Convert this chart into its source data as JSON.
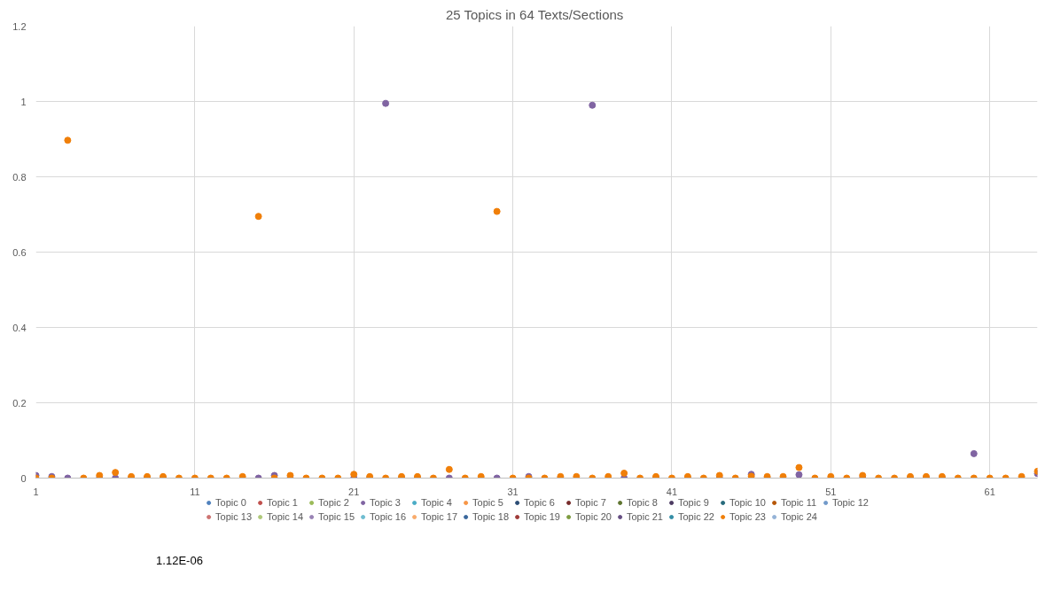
{
  "chart_data": {
    "type": "scatter",
    "title": "25 Topics in  64 Texts/Sections",
    "x": [
      1,
      2,
      3,
      4,
      5,
      6,
      7,
      8,
      9,
      10,
      11,
      12,
      13,
      14,
      15,
      16,
      17,
      18,
      19,
      20,
      21,
      22,
      23,
      24,
      25,
      26,
      27,
      28,
      29,
      30,
      31,
      32,
      33,
      34,
      35,
      36,
      37,
      38,
      39,
      40,
      41,
      42,
      43,
      44,
      45,
      46,
      47,
      48,
      49,
      50,
      51,
      52,
      53,
      54,
      55,
      56,
      57,
      58,
      59,
      60,
      61,
      62,
      63,
      64
    ],
    "xlim": [
      1,
      64
    ],
    "xticks": [
      1,
      11,
      21,
      31,
      41,
      51,
      61
    ],
    "ylim": [
      0,
      1.2
    ],
    "yticks": [
      0,
      0.2,
      0.4,
      0.6,
      0.8,
      1,
      1.2
    ],
    "grid": true,
    "legend": "bottom",
    "marker": "circle",
    "annotations": [
      "1.12E-06"
    ],
    "series": [
      {
        "name": "Topic 0",
        "color": "#4f81bd",
        "values": [
          null,
          null,
          null,
          null,
          null,
          null,
          null,
          null,
          null,
          null,
          null,
          null,
          null,
          null,
          null,
          null,
          null,
          null,
          null,
          null,
          null,
          null,
          null,
          null,
          null,
          null,
          null,
          null,
          null,
          null,
          null,
          null,
          null,
          null,
          null,
          null,
          null,
          null,
          null,
          null,
          null,
          null,
          null,
          null,
          null,
          null,
          null,
          null,
          null,
          null,
          null,
          null,
          null,
          null,
          null,
          null,
          null,
          null,
          null,
          null,
          null,
          null,
          null,
          null
        ]
      },
      {
        "name": "Topic 1",
        "color": "#c0504d",
        "values": [
          null,
          null,
          null,
          null,
          null,
          null,
          null,
          null,
          null,
          null,
          null,
          null,
          null,
          null,
          null,
          null,
          null,
          null,
          null,
          null,
          null,
          null,
          null,
          null,
          null,
          null,
          null,
          null,
          null,
          null,
          null,
          null,
          null,
          null,
          null,
          null,
          null,
          null,
          null,
          null,
          null,
          null,
          null,
          null,
          null,
          null,
          null,
          null,
          null,
          null,
          null,
          null,
          null,
          null,
          null,
          null,
          null,
          null,
          null,
          null,
          null,
          null,
          null,
          null
        ]
      },
      {
        "name": "Topic 2",
        "color": "#9bbb59",
        "values": [
          null,
          null,
          null,
          null,
          null,
          null,
          null,
          null,
          null,
          null,
          null,
          null,
          null,
          null,
          null,
          null,
          null,
          null,
          null,
          null,
          null,
          null,
          null,
          null,
          null,
          null,
          null,
          null,
          null,
          null,
          null,
          null,
          null,
          null,
          null,
          null,
          null,
          null,
          null,
          null,
          null,
          null,
          null,
          null,
          null,
          null,
          null,
          null,
          null,
          null,
          null,
          null,
          null,
          null,
          null,
          null,
          null,
          null,
          null,
          null,
          null,
          null,
          null,
          null
        ]
      },
      {
        "name": "Topic 3",
        "color": "#8064a2",
        "values": [
          0.007,
          0.004,
          0,
          null,
          0,
          0,
          0,
          0,
          0,
          null,
          null,
          null,
          null,
          null,
          0,
          0.007,
          0,
          null,
          null,
          null,
          0,
          0,
          0.995,
          0,
          0,
          null,
          0,
          null,
          null,
          0,
          null,
          0.004,
          null,
          0,
          null,
          0.99,
          null,
          0,
          null,
          0,
          null,
          0,
          null,
          0,
          null,
          0.01,
          0,
          null,
          0.009,
          null,
          null,
          null,
          0,
          null,
          null,
          0,
          0,
          0,
          null,
          0.065,
          null,
          null,
          null,
          0.012
        ]
      },
      {
        "name": "Topic 4",
        "color": "#4bacc6",
        "values": [
          null,
          null,
          null,
          null,
          null,
          null,
          null,
          null,
          null,
          null,
          null,
          null,
          null,
          null,
          null,
          null,
          null,
          null,
          null,
          null,
          null,
          null,
          null,
          null,
          null,
          null,
          null,
          null,
          null,
          null,
          null,
          null,
          null,
          null,
          null,
          null,
          null,
          null,
          null,
          null,
          null,
          null,
          null,
          null,
          null,
          null,
          null,
          null,
          null,
          null,
          null,
          null,
          null,
          null,
          null,
          null,
          null,
          null,
          null,
          null,
          null,
          null,
          null,
          null
        ]
      },
      {
        "name": "Topic 5",
        "color": "#f79646",
        "values": [
          null,
          null,
          null,
          null,
          null,
          null,
          null,
          null,
          null,
          null,
          null,
          null,
          null,
          null,
          null,
          null,
          null,
          null,
          null,
          null,
          null,
          null,
          null,
          null,
          null,
          null,
          null,
          null,
          null,
          null,
          null,
          null,
          null,
          null,
          null,
          null,
          null,
          null,
          null,
          null,
          null,
          null,
          null,
          null,
          null,
          null,
          null,
          null,
          null,
          null,
          null,
          null,
          null,
          null,
          null,
          null,
          null,
          null,
          null,
          null,
          null,
          null,
          null,
          null
        ]
      },
      {
        "name": "Topic 6",
        "color": "#2c4d75",
        "values": [
          null,
          null,
          null,
          null,
          null,
          null,
          null,
          null,
          null,
          null,
          null,
          null,
          null,
          null,
          null,
          null,
          null,
          null,
          null,
          null,
          null,
          null,
          null,
          null,
          null,
          null,
          null,
          null,
          null,
          null,
          null,
          null,
          null,
          null,
          null,
          null,
          null,
          null,
          null,
          null,
          null,
          null,
          null,
          null,
          null,
          null,
          null,
          null,
          null,
          null,
          null,
          null,
          null,
          null,
          null,
          null,
          null,
          null,
          null,
          null,
          null,
          null,
          null,
          null
        ]
      },
      {
        "name": "Topic 7",
        "color": "#772c2a",
        "values": [
          null,
          null,
          null,
          null,
          null,
          null,
          null,
          null,
          null,
          null,
          null,
          null,
          null,
          null,
          null,
          null,
          null,
          null,
          null,
          null,
          null,
          null,
          null,
          null,
          null,
          null,
          null,
          null,
          null,
          null,
          null,
          null,
          null,
          null,
          null,
          null,
          null,
          null,
          null,
          null,
          null,
          null,
          null,
          null,
          null,
          null,
          null,
          null,
          null,
          null,
          null,
          null,
          null,
          null,
          null,
          null,
          null,
          null,
          null,
          null,
          null,
          null,
          null,
          null
        ]
      },
      {
        "name": "Topic 8",
        "color": "#5f7530",
        "values": [
          null,
          null,
          null,
          null,
          null,
          null,
          null,
          null,
          null,
          null,
          null,
          null,
          null,
          null,
          null,
          null,
          null,
          null,
          null,
          null,
          null,
          null,
          null,
          null,
          null,
          null,
          null,
          null,
          null,
          null,
          null,
          null,
          null,
          null,
          null,
          null,
          null,
          null,
          null,
          null,
          null,
          null,
          null,
          null,
          null,
          null,
          null,
          null,
          null,
          null,
          null,
          null,
          null,
          null,
          null,
          null,
          null,
          null,
          null,
          null,
          null,
          null,
          null,
          null
        ]
      },
      {
        "name": "Topic 9",
        "color": "#4d3b62",
        "values": [
          null,
          null,
          null,
          null,
          null,
          null,
          null,
          null,
          null,
          null,
          null,
          null,
          null,
          null,
          null,
          null,
          null,
          null,
          null,
          null,
          null,
          null,
          null,
          null,
          null,
          null,
          null,
          null,
          null,
          null,
          null,
          null,
          null,
          null,
          null,
          null,
          null,
          null,
          null,
          null,
          null,
          null,
          null,
          null,
          null,
          null,
          null,
          null,
          null,
          null,
          null,
          null,
          null,
          null,
          null,
          null,
          null,
          null,
          null,
          null,
          null,
          null,
          null,
          null
        ]
      },
      {
        "name": "Topic 10",
        "color": "#276a7c",
        "values": [
          null,
          null,
          null,
          null,
          null,
          null,
          null,
          null,
          null,
          null,
          null,
          null,
          null,
          null,
          null,
          null,
          null,
          null,
          null,
          null,
          null,
          null,
          null,
          null,
          null,
          null,
          null,
          null,
          null,
          null,
          null,
          null,
          null,
          null,
          null,
          null,
          null,
          null,
          null,
          null,
          null,
          null,
          null,
          null,
          null,
          null,
          null,
          null,
          null,
          null,
          null,
          null,
          null,
          null,
          null,
          null,
          null,
          null,
          null,
          null,
          null,
          null,
          null,
          null
        ]
      },
      {
        "name": "Topic 11",
        "color": "#b65708",
        "values": [
          null,
          null,
          null,
          null,
          null,
          null,
          null,
          null,
          null,
          null,
          null,
          null,
          null,
          null,
          null,
          null,
          null,
          null,
          null,
          null,
          null,
          null,
          null,
          null,
          null,
          null,
          null,
          null,
          null,
          null,
          null,
          null,
          null,
          null,
          null,
          null,
          null,
          null,
          null,
          null,
          null,
          null,
          null,
          null,
          null,
          null,
          null,
          null,
          null,
          null,
          null,
          null,
          null,
          null,
          null,
          null,
          null,
          null,
          null,
          null,
          null,
          null,
          null,
          null
        ]
      },
      {
        "name": "Topic 12",
        "color": "#729aca",
        "values": [
          null,
          null,
          null,
          null,
          null,
          null,
          null,
          null,
          null,
          null,
          null,
          null,
          null,
          null,
          null,
          null,
          null,
          null,
          null,
          null,
          null,
          null,
          null,
          null,
          null,
          null,
          null,
          null,
          null,
          null,
          null,
          null,
          null,
          null,
          null,
          null,
          null,
          null,
          null,
          null,
          null,
          null,
          null,
          null,
          null,
          null,
          null,
          null,
          null,
          null,
          null,
          null,
          null,
          null,
          null,
          null,
          null,
          null,
          null,
          null,
          null,
          null,
          null,
          null
        ]
      },
      {
        "name": "Topic 13",
        "color": "#cd7371",
        "values": [
          null,
          null,
          null,
          null,
          null,
          null,
          null,
          null,
          null,
          null,
          null,
          null,
          null,
          null,
          null,
          null,
          null,
          null,
          null,
          null,
          null,
          null,
          null,
          null,
          null,
          null,
          null,
          null,
          null,
          null,
          null,
          null,
          null,
          null,
          null,
          null,
          null,
          null,
          null,
          null,
          null,
          null,
          null,
          null,
          null,
          null,
          null,
          null,
          null,
          null,
          null,
          null,
          null,
          null,
          null,
          null,
          null,
          null,
          null,
          null,
          null,
          null,
          null,
          null
        ]
      },
      {
        "name": "Topic 14",
        "color": "#afc97a",
        "values": [
          null,
          null,
          null,
          null,
          null,
          null,
          null,
          null,
          null,
          null,
          null,
          null,
          null,
          null,
          null,
          null,
          null,
          null,
          null,
          null,
          null,
          null,
          null,
          null,
          null,
          null,
          null,
          null,
          null,
          null,
          null,
          null,
          null,
          null,
          null,
          null,
          null,
          null,
          null,
          null,
          null,
          null,
          null,
          null,
          null,
          null,
          null,
          null,
          null,
          null,
          null,
          null,
          null,
          null,
          null,
          null,
          null,
          null,
          null,
          null,
          null,
          null,
          null,
          null
        ]
      },
      {
        "name": "Topic 15",
        "color": "#9983b5",
        "values": [
          null,
          null,
          null,
          null,
          null,
          null,
          null,
          null,
          null,
          null,
          null,
          null,
          null,
          null,
          null,
          null,
          null,
          null,
          null,
          null,
          null,
          null,
          null,
          null,
          null,
          null,
          null,
          null,
          null,
          null,
          null,
          null,
          null,
          null,
          null,
          null,
          null,
          null,
          null,
          null,
          null,
          null,
          null,
          null,
          null,
          null,
          null,
          null,
          null,
          null,
          null,
          null,
          null,
          null,
          null,
          null,
          null,
          null,
          null,
          null,
          null,
          null,
          null,
          null
        ]
      },
      {
        "name": "Topic 16",
        "color": "#6fbdd1",
        "values": [
          null,
          null,
          null,
          null,
          null,
          null,
          null,
          null,
          null,
          null,
          null,
          null,
          null,
          null,
          null,
          null,
          null,
          null,
          null,
          null,
          null,
          null,
          null,
          null,
          null,
          null,
          null,
          null,
          null,
          null,
          null,
          null,
          null,
          null,
          null,
          null,
          null,
          null,
          null,
          null,
          null,
          null,
          null,
          null,
          null,
          null,
          null,
          null,
          null,
          null,
          null,
          null,
          null,
          null,
          null,
          null,
          null,
          null,
          null,
          null,
          null,
          null,
          null,
          null
        ]
      },
      {
        "name": "Topic 17",
        "color": "#f9ab6b",
        "values": [
          null,
          null,
          null,
          null,
          null,
          null,
          null,
          null,
          null,
          null,
          null,
          null,
          null,
          null,
          null,
          null,
          null,
          null,
          null,
          null,
          null,
          null,
          null,
          null,
          null,
          null,
          null,
          null,
          null,
          null,
          null,
          null,
          null,
          null,
          null,
          null,
          null,
          null,
          null,
          null,
          null,
          null,
          null,
          null,
          null,
          null,
          null,
          null,
          null,
          null,
          null,
          null,
          null,
          null,
          null,
          null,
          null,
          null,
          null,
          null,
          null,
          null,
          null,
          null
        ]
      },
      {
        "name": "Topic 18",
        "color": "#3a679c",
        "values": [
          null,
          null,
          null,
          null,
          null,
          null,
          null,
          null,
          null,
          null,
          null,
          null,
          null,
          null,
          null,
          null,
          null,
          null,
          null,
          null,
          null,
          null,
          null,
          null,
          null,
          null,
          null,
          null,
          null,
          null,
          null,
          null,
          null,
          null,
          null,
          null,
          null,
          null,
          null,
          null,
          null,
          null,
          null,
          null,
          null,
          null,
          null,
          null,
          null,
          null,
          null,
          null,
          null,
          null,
          null,
          null,
          null,
          null,
          null,
          null,
          null,
          null,
          null,
          null
        ]
      },
      {
        "name": "Topic 19",
        "color": "#9f3b38",
        "values": [
          null,
          null,
          null,
          null,
          null,
          null,
          null,
          null,
          null,
          null,
          null,
          null,
          null,
          null,
          null,
          null,
          null,
          null,
          null,
          null,
          null,
          null,
          null,
          null,
          null,
          null,
          null,
          null,
          null,
          null,
          null,
          null,
          null,
          null,
          null,
          null,
          null,
          null,
          null,
          null,
          null,
          null,
          null,
          null,
          null,
          null,
          null,
          null,
          null,
          null,
          null,
          null,
          null,
          null,
          null,
          null,
          null,
          null,
          null,
          null,
          null,
          null,
          null,
          null
        ]
      },
      {
        "name": "Topic 20",
        "color": "#7e9c40",
        "values": [
          null,
          null,
          null,
          null,
          null,
          null,
          null,
          null,
          null,
          null,
          null,
          null,
          null,
          null,
          null,
          null,
          null,
          null,
          null,
          null,
          null,
          null,
          null,
          null,
          null,
          null,
          null,
          null,
          null,
          null,
          null,
          null,
          null,
          null,
          null,
          null,
          null,
          null,
          null,
          null,
          null,
          null,
          null,
          null,
          null,
          null,
          null,
          null,
          null,
          null,
          null,
          null,
          null,
          null,
          null,
          null,
          null,
          null,
          null,
          null,
          null,
          null,
          null,
          null
        ]
      },
      {
        "name": "Topic 21",
        "color": "#664f83",
        "values": [
          null,
          null,
          null,
          null,
          null,
          null,
          null,
          null,
          null,
          null,
          null,
          null,
          null,
          null,
          null,
          null,
          null,
          null,
          null,
          null,
          null,
          null,
          null,
          null,
          null,
          null,
          null,
          null,
          null,
          null,
          null,
          null,
          null,
          null,
          null,
          null,
          null,
          null,
          null,
          null,
          null,
          null,
          null,
          null,
          null,
          null,
          null,
          null,
          null,
          null,
          null,
          null,
          null,
          null,
          null,
          null,
          null,
          null,
          null,
          null,
          null,
          null,
          null,
          null
        ]
      },
      {
        "name": "Topic 22",
        "color": "#358ea6",
        "values": [
          null,
          null,
          null,
          null,
          null,
          null,
          null,
          null,
          null,
          null,
          null,
          null,
          null,
          null,
          null,
          null,
          null,
          null,
          null,
          null,
          null,
          null,
          null,
          null,
          null,
          null,
          null,
          null,
          null,
          null,
          null,
          null,
          null,
          null,
          null,
          null,
          null,
          null,
          null,
          null,
          null,
          null,
          null,
          null,
          null,
          null,
          null,
          null,
          null,
          null,
          null,
          null,
          null,
          null,
          null,
          null,
          null,
          null,
          null,
          null,
          null,
          null,
          null,
          null
        ]
      },
      {
        "name": "Topic 23",
        "color": "#f07f09",
        "values": [
          0,
          0,
          0.897,
          0,
          0.007,
          0.015,
          0.004,
          0.004,
          0.004,
          0,
          0,
          0,
          0,
          0.004,
          0.695,
          0,
          0.007,
          0,
          0,
          0,
          0.01,
          0.004,
          0,
          0.004,
          0.004,
          0,
          0.023,
          0,
          0.004,
          0.708,
          0,
          0,
          0,
          0.004,
          0.004,
          0,
          0.004,
          0.013,
          0,
          0.004,
          0,
          0.004,
          0,
          0.007,
          0,
          0.005,
          0.004,
          0.004,
          0.028,
          0,
          0.004,
          0,
          0.007,
          0,
          0,
          0.004,
          0.004,
          0.004,
          0,
          0,
          0,
          0,
          0.004,
          0.018
        ]
      },
      {
        "name": "Topic 24",
        "color": "#95b3d7",
        "values": [
          null,
          null,
          null,
          null,
          null,
          null,
          null,
          null,
          null,
          null,
          null,
          null,
          null,
          null,
          null,
          null,
          null,
          null,
          null,
          null,
          null,
          null,
          null,
          null,
          null,
          null,
          null,
          null,
          null,
          null,
          null,
          null,
          null,
          null,
          null,
          null,
          null,
          null,
          null,
          null,
          null,
          null,
          null,
          null,
          null,
          null,
          null,
          null,
          null,
          null,
          null,
          null,
          null,
          null,
          null,
          null,
          null,
          null,
          null,
          null,
          null,
          null,
          null,
          null
        ]
      }
    ]
  }
}
